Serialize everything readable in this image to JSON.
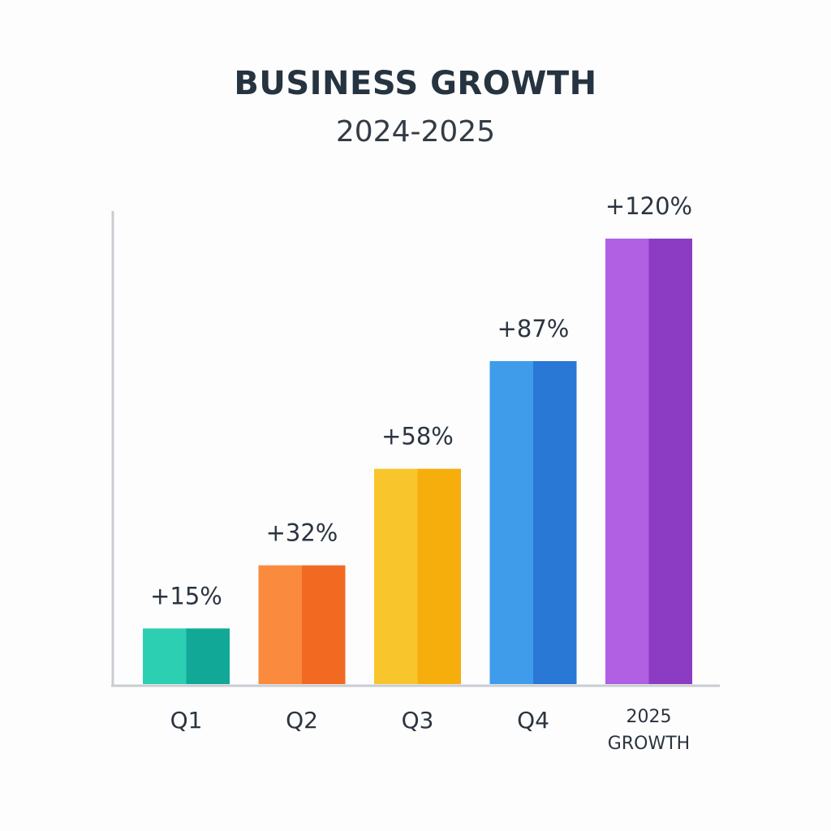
{
  "chart_data": {
    "type": "bar",
    "title": "BUSINESS GROWTH",
    "subtitle": "2024-2025",
    "categories": [
      "Q1",
      "Q2",
      "Q3",
      "Q4",
      "2025 GROWTH"
    ],
    "values": [
      15,
      32,
      58,
      87,
      120
    ],
    "value_labels": [
      "+15%",
      "+32%",
      "+58%",
      "+87%",
      "+120%"
    ],
    "ylim": [
      0,
      134
    ],
    "grid": false,
    "legend": "none",
    "colors": [
      {
        "light": "#2dcfb3",
        "dark": "#12a898"
      },
      {
        "light": "#f98a3e",
        "dark": "#f26a22"
      },
      {
        "light": "#f8c52c",
        "dark": "#f5ae0c"
      },
      {
        "light": "#3f9ceb",
        "dark": "#2a78d6"
      },
      {
        "light": "#b15fe3",
        "dark": "#8b3cc2"
      }
    ]
  }
}
